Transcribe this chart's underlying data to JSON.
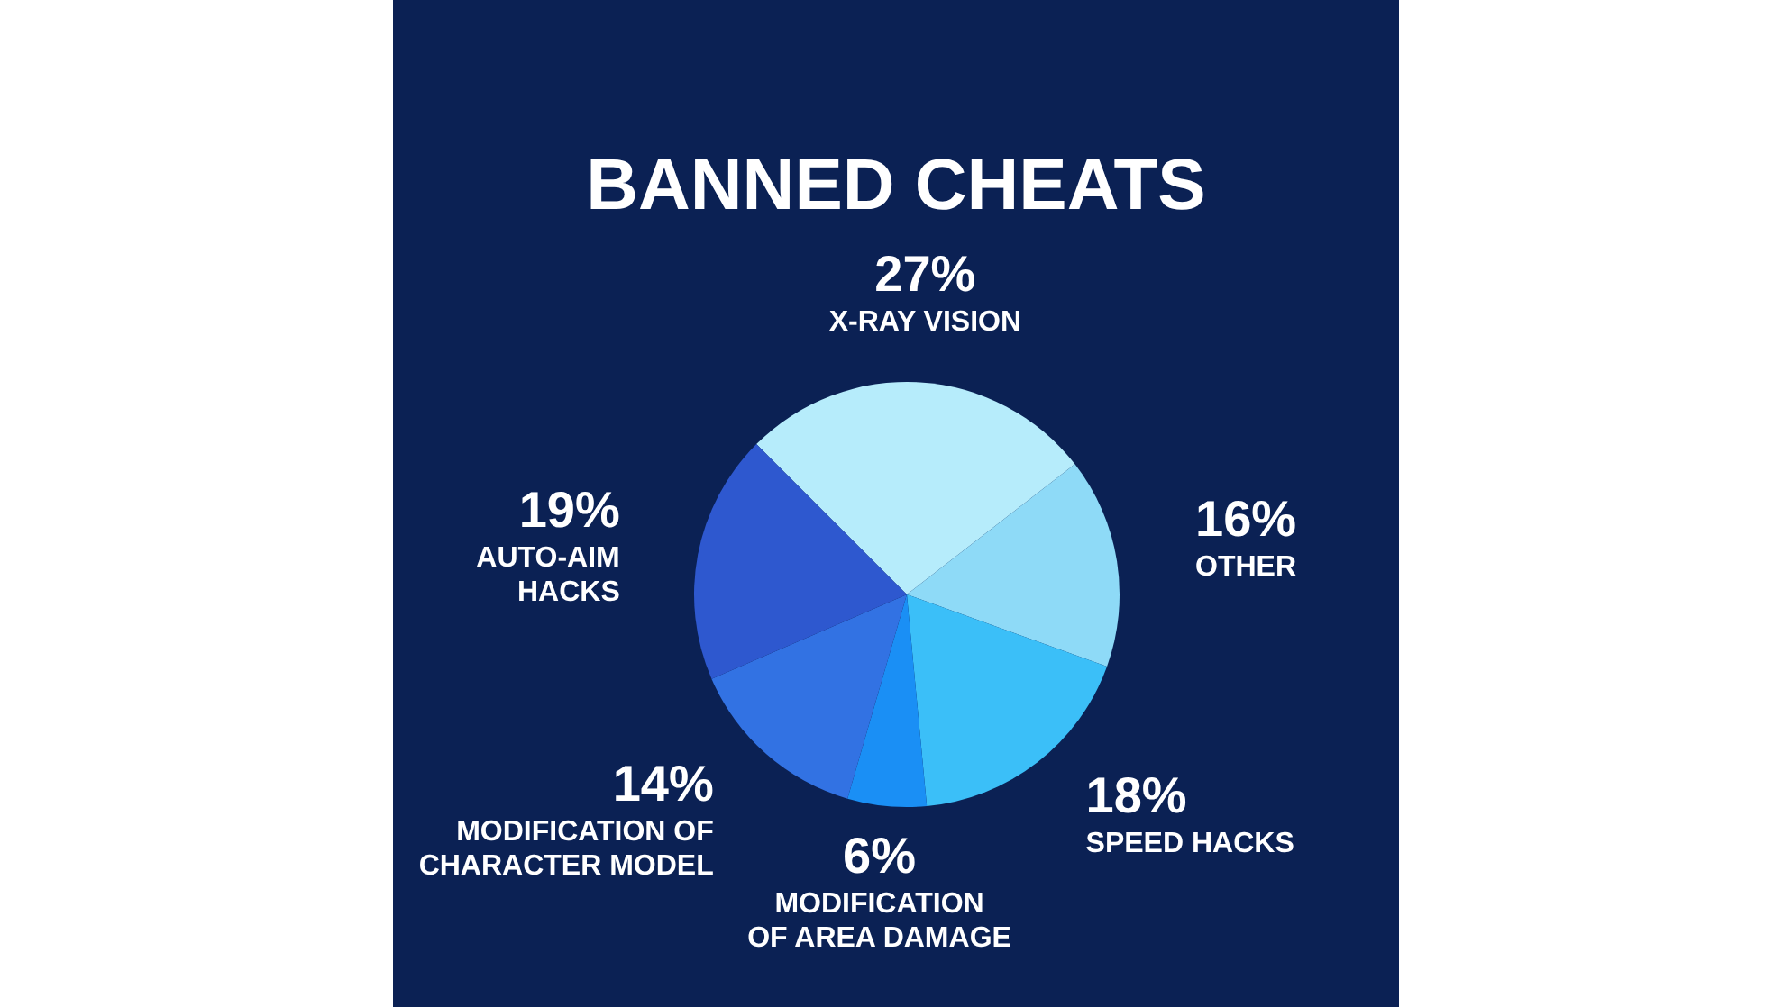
{
  "chart_data": {
    "type": "pie",
    "title": "BANNED CHEATS",
    "categories": [
      "X-RAY VISION",
      "OTHER",
      "SPEED HACKS",
      "MODIFICATION\nOF AREA DAMAGE",
      "MODIFICATION OF\nCHARACTER MODEL",
      "AUTO-AIM\nHACKS"
    ],
    "values": [
      27,
      16,
      18,
      6,
      14,
      19
    ],
    "colors": [
      "#b6ecfb",
      "#8edaf7",
      "#3bbff8",
      "#1a8ff5",
      "#3272e3",
      "#2e58cf"
    ],
    "value_labels": [
      "27%",
      "16%",
      "18%",
      "6%",
      "14%",
      "19%"
    ]
  }
}
